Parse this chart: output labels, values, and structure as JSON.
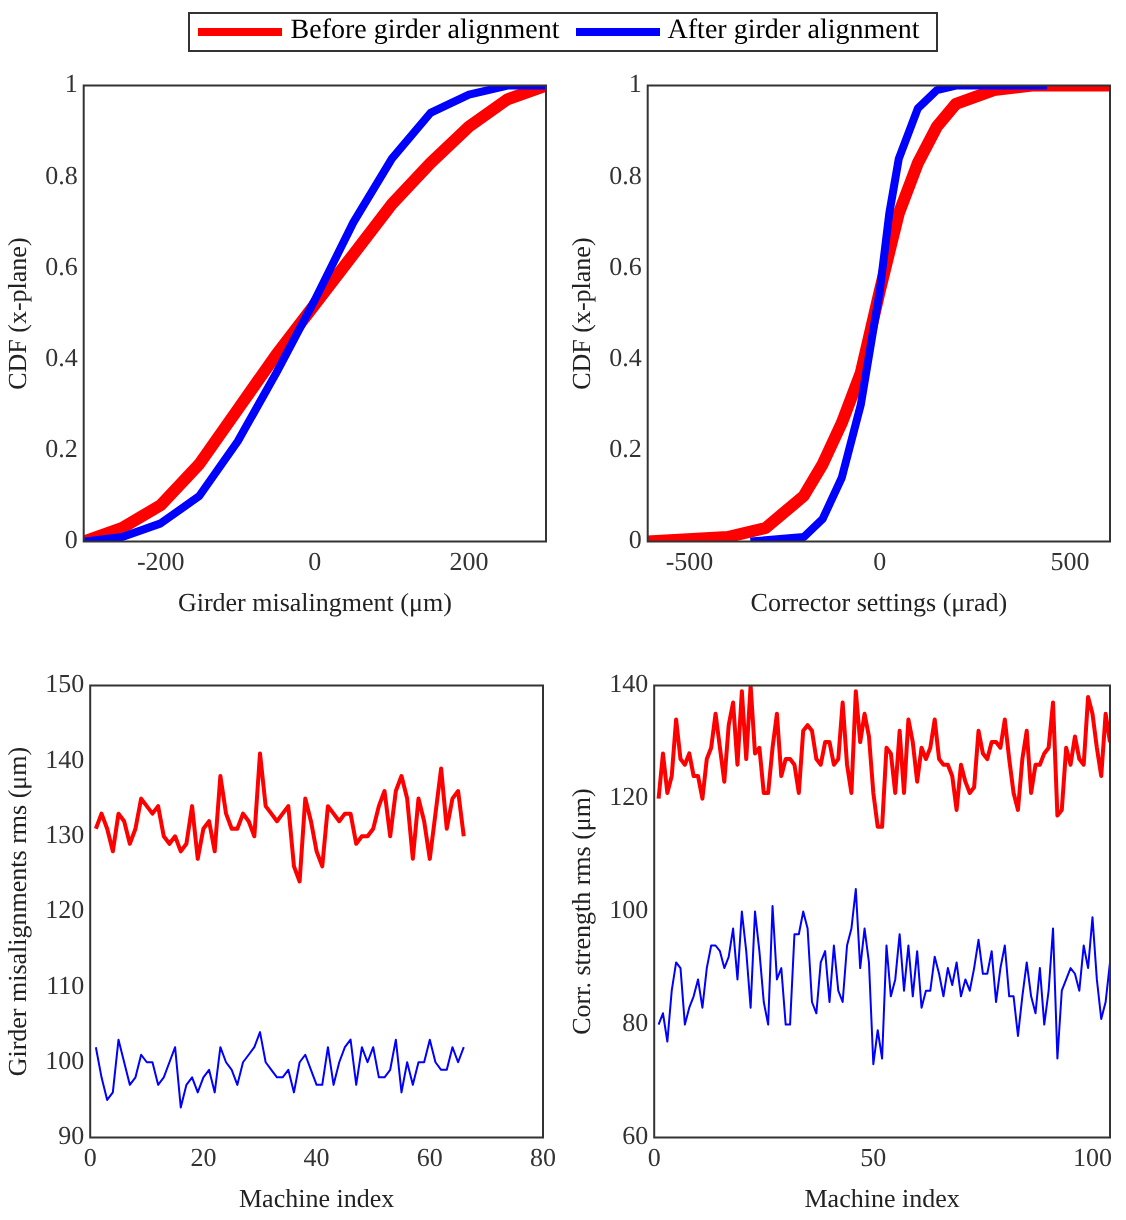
{
  "chart_data": [
    {
      "type": "line",
      "xlabel": "Girder misalingment (μm)",
      "ylabel": "CDF (x-plane)",
      "xlim": [
        -300,
        300
      ],
      "xticks": [
        -200,
        0,
        200
      ],
      "ylim": [
        0,
        1
      ],
      "yticks": [
        0,
        0.2,
        0.4,
        0.6,
        0.8,
        1
      ],
      "grid": false,
      "legend": "top",
      "marker": "none",
      "line_style": "solid",
      "series": [
        {
          "name": "Before girder alignment",
          "color": "#ff0000",
          "x": [
            -300,
            -250,
            -200,
            -150,
            -100,
            -50,
            0,
            50,
            100,
            150,
            200,
            250,
            300
          ],
          "values": [
            0,
            0.03,
            0.08,
            0.17,
            0.29,
            0.41,
            0.52,
            0.63,
            0.74,
            0.83,
            0.91,
            0.97,
            1
          ]
        },
        {
          "name": "After girder alignment",
          "color": "#0000ff",
          "x": [
            -300,
            -250,
            -200,
            -150,
            -100,
            -50,
            0,
            50,
            100,
            150,
            200,
            250,
            300
          ],
          "values": [
            0,
            0.01,
            0.04,
            0.1,
            0.22,
            0.37,
            0.53,
            0.7,
            0.84,
            0.94,
            0.98,
            1,
            1
          ]
        }
      ]
    },
    {
      "type": "line",
      "xlabel": "Corrector settings (μrad)",
      "ylabel": "CDF (x-plane)",
      "xlim": [
        -610,
        605
      ],
      "xticks": [
        -500,
        0,
        500
      ],
      "ylim": [
        0,
        1
      ],
      "yticks": [
        0,
        0.2,
        0.4,
        0.6,
        0.8,
        1
      ],
      "grid": false,
      "marker": "none",
      "line_style": "solid",
      "series": [
        {
          "color": "#ff0000",
          "x": [
            -610,
            -400,
            -300,
            -200,
            -150,
            -100,
            -50,
            0,
            50,
            100,
            150,
            200,
            300,
            400,
            605
          ],
          "values": [
            0,
            0.01,
            0.03,
            0.1,
            0.17,
            0.26,
            0.37,
            0.55,
            0.72,
            0.83,
            0.91,
            0.96,
            0.99,
            1,
            1
          ]
        },
        {
          "color": "#0000ff",
          "x": [
            -340,
            -200,
            -150,
            -100,
            -50,
            0,
            25,
            50,
            100,
            150,
            200,
            440
          ],
          "values": [
            0,
            0.01,
            0.05,
            0.14,
            0.3,
            0.55,
            0.72,
            0.84,
            0.95,
            0.99,
            1,
            1
          ]
        }
      ]
    },
    {
      "type": "line",
      "xlabel": "Machine index",
      "ylabel": "Girder misalignments rms (μm)",
      "xlim": [
        0,
        80
      ],
      "xticks": [
        0,
        20,
        40,
        60,
        80
      ],
      "ylim": [
        90,
        150
      ],
      "yticks": [
        90,
        100,
        110,
        120,
        130,
        140,
        150
      ],
      "grid": false,
      "marker": "none",
      "line_style": "solid",
      "series": [
        {
          "color": "#ff0000",
          "x": [
            1,
            2,
            3,
            4,
            5,
            6,
            7,
            8,
            9,
            10,
            11,
            12,
            13,
            14,
            15,
            16,
            17,
            18,
            19,
            20,
            21,
            22,
            23,
            24,
            25,
            26,
            27,
            28,
            29,
            30,
            31,
            32,
            33,
            34,
            35,
            36,
            37,
            38,
            39,
            40,
            41,
            42,
            43,
            44,
            45,
            46,
            47,
            48,
            49,
            50,
            51,
            52,
            53,
            54,
            55,
            56,
            57,
            58,
            59,
            60,
            61,
            62,
            63,
            64,
            65,
            66
          ],
          "values": [
            131,
            133,
            131,
            128,
            133,
            132,
            129,
            131,
            135,
            134,
            133,
            134,
            130,
            129,
            130,
            128,
            129,
            134,
            127,
            131,
            132,
            128,
            138,
            133,
            131,
            131,
            133,
            132,
            130,
            141,
            134,
            133,
            132,
            133,
            134,
            126,
            124,
            135,
            132,
            128,
            126,
            134,
            133,
            132,
            133,
            133,
            129,
            130,
            130,
            131,
            134,
            136,
            130,
            136,
            138,
            135,
            127,
            135,
            132,
            127,
            133,
            139,
            131,
            135,
            136,
            130
          ]
        },
        {
          "color": "#0000ff",
          "x": [
            1,
            2,
            3,
            4,
            5,
            6,
            7,
            8,
            9,
            10,
            11,
            12,
            13,
            14,
            15,
            16,
            17,
            18,
            19,
            20,
            21,
            22,
            23,
            24,
            25,
            26,
            27,
            28,
            29,
            30,
            31,
            32,
            33,
            34,
            35,
            36,
            37,
            38,
            39,
            40,
            41,
            42,
            43,
            44,
            45,
            46,
            47,
            48,
            49,
            50,
            51,
            52,
            53,
            54,
            55,
            56,
            57,
            58,
            59,
            60,
            61,
            62,
            63,
            64,
            65,
            66
          ],
          "values": [
            102,
            98,
            95,
            96,
            103,
            100,
            97,
            98,
            101,
            100,
            100,
            97,
            98,
            100,
            102,
            94,
            97,
            98,
            96,
            98,
            99,
            96,
            102,
            100,
            99,
            97,
            100,
            101,
            102,
            104,
            100,
            99,
            98,
            98,
            99,
            96,
            100,
            101,
            99,
            97,
            97,
            102,
            97,
            100,
            102,
            103,
            97,
            102,
            100,
            102,
            98,
            98,
            99,
            103,
            96,
            100,
            97,
            100,
            100,
            103,
            100,
            99,
            99,
            102,
            100,
            102
          ]
        }
      ]
    },
    {
      "type": "line",
      "xlabel": "Machine index",
      "ylabel": "Corr. strength rms (μm)",
      "xlim": [
        0,
        104
      ],
      "xticks": [
        0,
        50,
        100
      ],
      "ylim": [
        60,
        140
      ],
      "yticks": [
        60,
        80,
        100,
        120,
        140
      ],
      "grid": false,
      "marker": "none",
      "line_style": "solid",
      "series": [
        {
          "color": "#ff0000",
          "x": [
            1,
            2,
            3,
            4,
            5,
            6,
            7,
            8,
            9,
            10,
            11,
            12,
            13,
            14,
            15,
            16,
            17,
            18,
            19,
            20,
            21,
            22,
            23,
            24,
            25,
            26,
            27,
            28,
            29,
            30,
            31,
            32,
            33,
            34,
            35,
            36,
            37,
            38,
            39,
            40,
            41,
            42,
            43,
            44,
            45,
            46,
            47,
            48,
            49,
            50,
            51,
            52,
            53,
            54,
            55,
            56,
            57,
            58,
            59,
            60,
            61,
            62,
            63,
            64,
            65,
            66,
            67,
            68,
            69,
            70,
            71,
            72,
            73,
            74,
            75,
            76,
            77,
            78,
            79,
            80,
            81,
            82,
            83,
            84,
            85,
            86,
            87,
            88,
            89,
            90,
            91,
            92,
            93,
            94,
            95,
            96,
            97,
            98,
            99,
            100,
            101,
            102,
            103,
            104
          ],
          "values": [
            120,
            128,
            121,
            124,
            134,
            127,
            126,
            128,
            124,
            124,
            120,
            127,
            129,
            135,
            129,
            123,
            133,
            137,
            126,
            139,
            127,
            140,
            128,
            129,
            121,
            121,
            129,
            135,
            124,
            127,
            127,
            126,
            121,
            132,
            133,
            132,
            127,
            126,
            130,
            130,
            126,
            127,
            137,
            126,
            121,
            139,
            130,
            135,
            131,
            121,
            115,
            115,
            129,
            128,
            121,
            132,
            121,
            134,
            130,
            123,
            129,
            127,
            129,
            134,
            127,
            126,
            126,
            124,
            118,
            126,
            123,
            121,
            122,
            132,
            128,
            127,
            130,
            130,
            129,
            134,
            127,
            121,
            118,
            127,
            132,
            121,
            126,
            126,
            128,
            129,
            137,
            117,
            118,
            129,
            126,
            131,
            127,
            126,
            138,
            135,
            129,
            124,
            135,
            130
          ]
        },
        {
          "color": "#0000ff",
          "x": [
            1,
            2,
            3,
            4,
            5,
            6,
            7,
            8,
            9,
            10,
            11,
            12,
            13,
            14,
            15,
            16,
            17,
            18,
            19,
            20,
            21,
            22,
            23,
            24,
            25,
            26,
            27,
            28,
            29,
            30,
            31,
            32,
            33,
            34,
            35,
            36,
            37,
            38,
            39,
            40,
            41,
            42,
            43,
            44,
            45,
            46,
            47,
            48,
            49,
            50,
            51,
            52,
            53,
            54,
            55,
            56,
            57,
            58,
            59,
            60,
            61,
            62,
            63,
            64,
            65,
            66,
            67,
            68,
            69,
            70,
            71,
            72,
            73,
            74,
            75,
            76,
            77,
            78,
            79,
            80,
            81,
            82,
            83,
            84,
            85,
            86,
            87,
            88,
            89,
            90,
            91,
            92,
            93,
            94,
            95,
            96,
            97,
            98,
            99,
            100,
            101,
            102,
            103,
            104
          ],
          "values": [
            80,
            82,
            77,
            86,
            91,
            90,
            80,
            83,
            85,
            88,
            83,
            90,
            94,
            94,
            93,
            90,
            92,
            97,
            88,
            100,
            93,
            83,
            100,
            93,
            84,
            80,
            101,
            88,
            90,
            80,
            80,
            96,
            96,
            100,
            97,
            84,
            82,
            91,
            93,
            84,
            94,
            86,
            84,
            94,
            97,
            104,
            90,
            97,
            91,
            73,
            79,
            74,
            94,
            85,
            88,
            96,
            86,
            94,
            85,
            93,
            83,
            86,
            86,
            92,
            89,
            85,
            90,
            87,
            91,
            85,
            88,
            86,
            90,
            95,
            89,
            89,
            93,
            84,
            90,
            94,
            85,
            85,
            78,
            85,
            91,
            85,
            82,
            90,
            80,
            86,
            97,
            74,
            86,
            88,
            90,
            89,
            86,
            94,
            90,
            99,
            88,
            81,
            84,
            91
          ]
        }
      ]
    }
  ]
}
